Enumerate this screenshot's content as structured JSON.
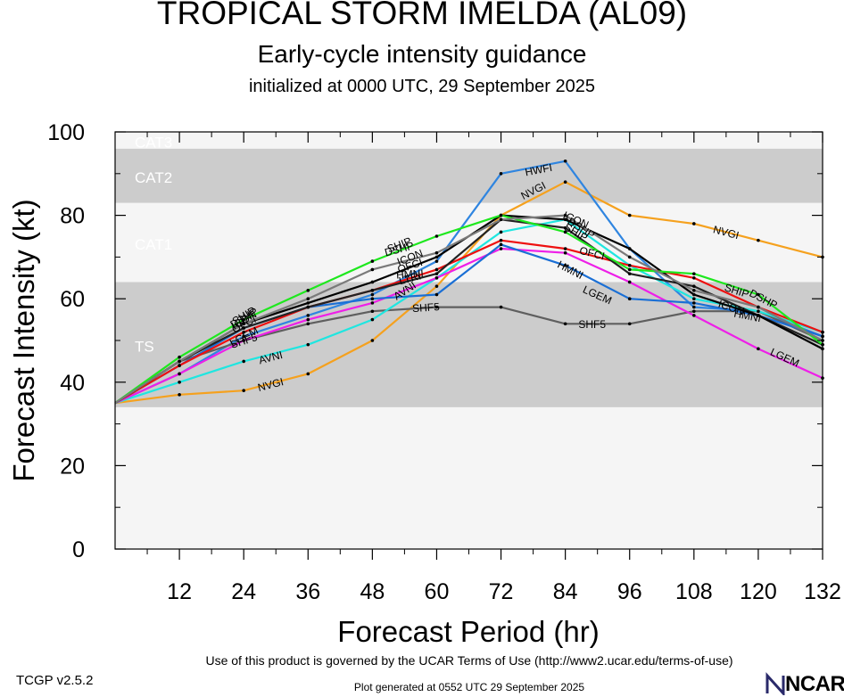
{
  "title": "TROPICAL STORM IMELDA (AL09)",
  "subtitle": "Early-cycle intensity guidance",
  "subtitle2": "initialized at 0000 UTC, 29 September 2025",
  "footer": {
    "terms": "Use of this product is governed by the UCAR Terms of Use (http://www2.ucar.edu/terms-of-use)",
    "version": "TCGP v2.5.2",
    "generated": "Plot generated at 0552 UTC   29 September 2025",
    "logo": "NCAR"
  },
  "chart_data": {
    "type": "line",
    "xlabel": "Forecast Period (hr)",
    "ylabel": "Forecast Intensity (kt)",
    "xlim": [
      0,
      132
    ],
    "ylim": [
      0,
      100
    ],
    "xticks": [
      12,
      24,
      36,
      48,
      60,
      72,
      84,
      96,
      108,
      120,
      132
    ],
    "yticks": [
      0,
      20,
      40,
      60,
      80,
      100
    ],
    "bands": [
      {
        "label": "TS",
        "from": 34,
        "to": 64,
        "color": "#cccccc"
      },
      {
        "label": "CAT1",
        "from": 64,
        "to": 83,
        "color": "#f5f5f5"
      },
      {
        "label": "CAT2",
        "from": 83,
        "to": 96,
        "color": "#cccccc"
      },
      {
        "label": "CAT3",
        "from": 96,
        "to": 100,
        "color": "#f5f5f5"
      }
    ],
    "series": [
      {
        "name": "NVGI",
        "color": "#f5a11e",
        "x": [
          0,
          12,
          24,
          36,
          48,
          60,
          72,
          84,
          96,
          108,
          120,
          132
        ],
        "y": [
          35,
          37,
          38,
          42,
          50,
          63,
          80,
          88,
          80,
          78,
          74,
          70
        ],
        "labels": [
          {
            "x": 29,
            "y": 39.5
          },
          {
            "x": 78,
            "y": 86
          },
          {
            "x": 114,
            "y": 76
          }
        ]
      },
      {
        "name": "HWFI",
        "color": "#2f85e0",
        "x": [
          0,
          12,
          24,
          36,
          48,
          60,
          72,
          84,
          96,
          108,
          120,
          132
        ],
        "y": [
          35,
          42,
          51,
          56,
          61,
          69,
          90,
          93,
          72,
          58,
          57,
          51
        ],
        "labels": [
          {
            "x": 79,
            "y": 91
          }
        ]
      },
      {
        "name": "SHF5",
        "color": "#5f5f5f",
        "x": [
          0,
          12,
          24,
          36,
          48,
          60,
          72,
          84,
          96,
          108,
          120,
          132
        ],
        "y": [
          35,
          45,
          50,
          54,
          57,
          58,
          58,
          54,
          54,
          57,
          57,
          50
        ],
        "labels": [
          {
            "x": 24,
            "y": 50
          },
          {
            "x": 58,
            "y": 58
          },
          {
            "x": 89,
            "y": 54
          }
        ]
      },
      {
        "name": "AVNI",
        "color": "#1fe6e0",
        "x": [
          0,
          12,
          24,
          36,
          48,
          60,
          72,
          84,
          96,
          108,
          120,
          132
        ],
        "y": [
          35,
          40,
          45,
          49,
          55,
          65,
          76,
          79,
          68,
          60,
          57,
          52
        ],
        "labels": [
          {
            "x": 29,
            "y": 46
          },
          {
            "x": 54,
            "y": 62
          }
        ]
      },
      {
        "name": "LGEM",
        "color": "#ee1fe8",
        "x": [
          0,
          12,
          24,
          36,
          48,
          60,
          72,
          84,
          96,
          108,
          120,
          132
        ],
        "y": [
          35,
          42,
          50,
          55,
          59,
          65,
          72,
          71,
          64,
          56,
          48,
          41
        ],
        "labels": [
          {
            "x": 24,
            "y": 51
          },
          {
            "x": 90,
            "y": 61
          },
          {
            "x": 125,
            "y": 46
          }
        ]
      },
      {
        "name": "HMNI",
        "color": "#1a6fd5",
        "x": [
          0,
          12,
          24,
          36,
          48,
          60,
          72,
          84,
          96,
          108,
          120,
          132
        ],
        "y": [
          35,
          44,
          53,
          58,
          60,
          61,
          73,
          68,
          60,
          59,
          56,
          51
        ],
        "labels": [
          {
            "x": 55,
            "y": 66
          },
          {
            "x": 85,
            "y": 67
          },
          {
            "x": 118,
            "y": 56
          }
        ]
      },
      {
        "name": "OFCI",
        "color": "#ee1010",
        "x": [
          0,
          12,
          24,
          36,
          48,
          60,
          72,
          84,
          96,
          108,
          120,
          132
        ],
        "y": [
          35,
          44,
          52,
          58,
          62,
          67,
          74,
          72,
          68,
          65,
          58,
          52
        ],
        "labels": [
          {
            "x": 24,
            "y": 54
          },
          {
            "x": 55,
            "y": 68
          },
          {
            "x": 89,
            "y": 71
          }
        ]
      },
      {
        "name": "LTRI",
        "color": "#222222",
        "x": [
          0,
          12,
          24,
          36,
          48,
          60,
          72,
          84,
          96,
          108,
          120,
          132
        ],
        "y": [
          35,
          45,
          53,
          58,
          62,
          66,
          79,
          77,
          66,
          63,
          56,
          49
        ],
        "labels": [
          {
            "x": 55,
            "y": 65
          }
        ]
      },
      {
        "name": "ICON",
        "color": "#000000",
        "x": [
          0,
          12,
          24,
          36,
          48,
          60,
          72,
          84,
          96,
          108,
          120,
          132
        ],
        "y": [
          35,
          45,
          54,
          59,
          64,
          70,
          80,
          79,
          72,
          61,
          56,
          48
        ],
        "labels": [
          {
            "x": 24,
            "y": 55
          },
          {
            "x": 55,
            "y": 70
          },
          {
            "x": 86,
            "y": 79
          },
          {
            "x": 115,
            "y": 58
          }
        ]
      },
      {
        "name": "SHIP",
        "color": "#1ee81e",
        "x": [
          0,
          12,
          24,
          36,
          48,
          60,
          72,
          84,
          96,
          108,
          120,
          132
        ],
        "y": [
          35,
          46,
          55,
          62,
          69,
          75,
          80,
          76,
          67,
          66,
          61,
          49
        ],
        "labels": [
          {
            "x": 24,
            "y": 56
          },
          {
            "x": 53,
            "y": 73
          },
          {
            "x": 86,
            "y": 76
          },
          {
            "x": 116,
            "y": 62
          }
        ]
      },
      {
        "name": "DSHP",
        "color": "#7a7a7a",
        "x": [
          0,
          12,
          24,
          36,
          48,
          60,
          72,
          84,
          96,
          108,
          120,
          132
        ],
        "y": [
          35,
          45,
          54,
          60,
          67,
          71,
          79,
          80,
          70,
          62,
          58,
          50
        ],
        "labels": [
          {
            "x": 24,
            "y": 55.5
          },
          {
            "x": 53,
            "y": 72
          },
          {
            "x": 87,
            "y": 77
          },
          {
            "x": 121,
            "y": 60
          }
        ]
      }
    ]
  }
}
